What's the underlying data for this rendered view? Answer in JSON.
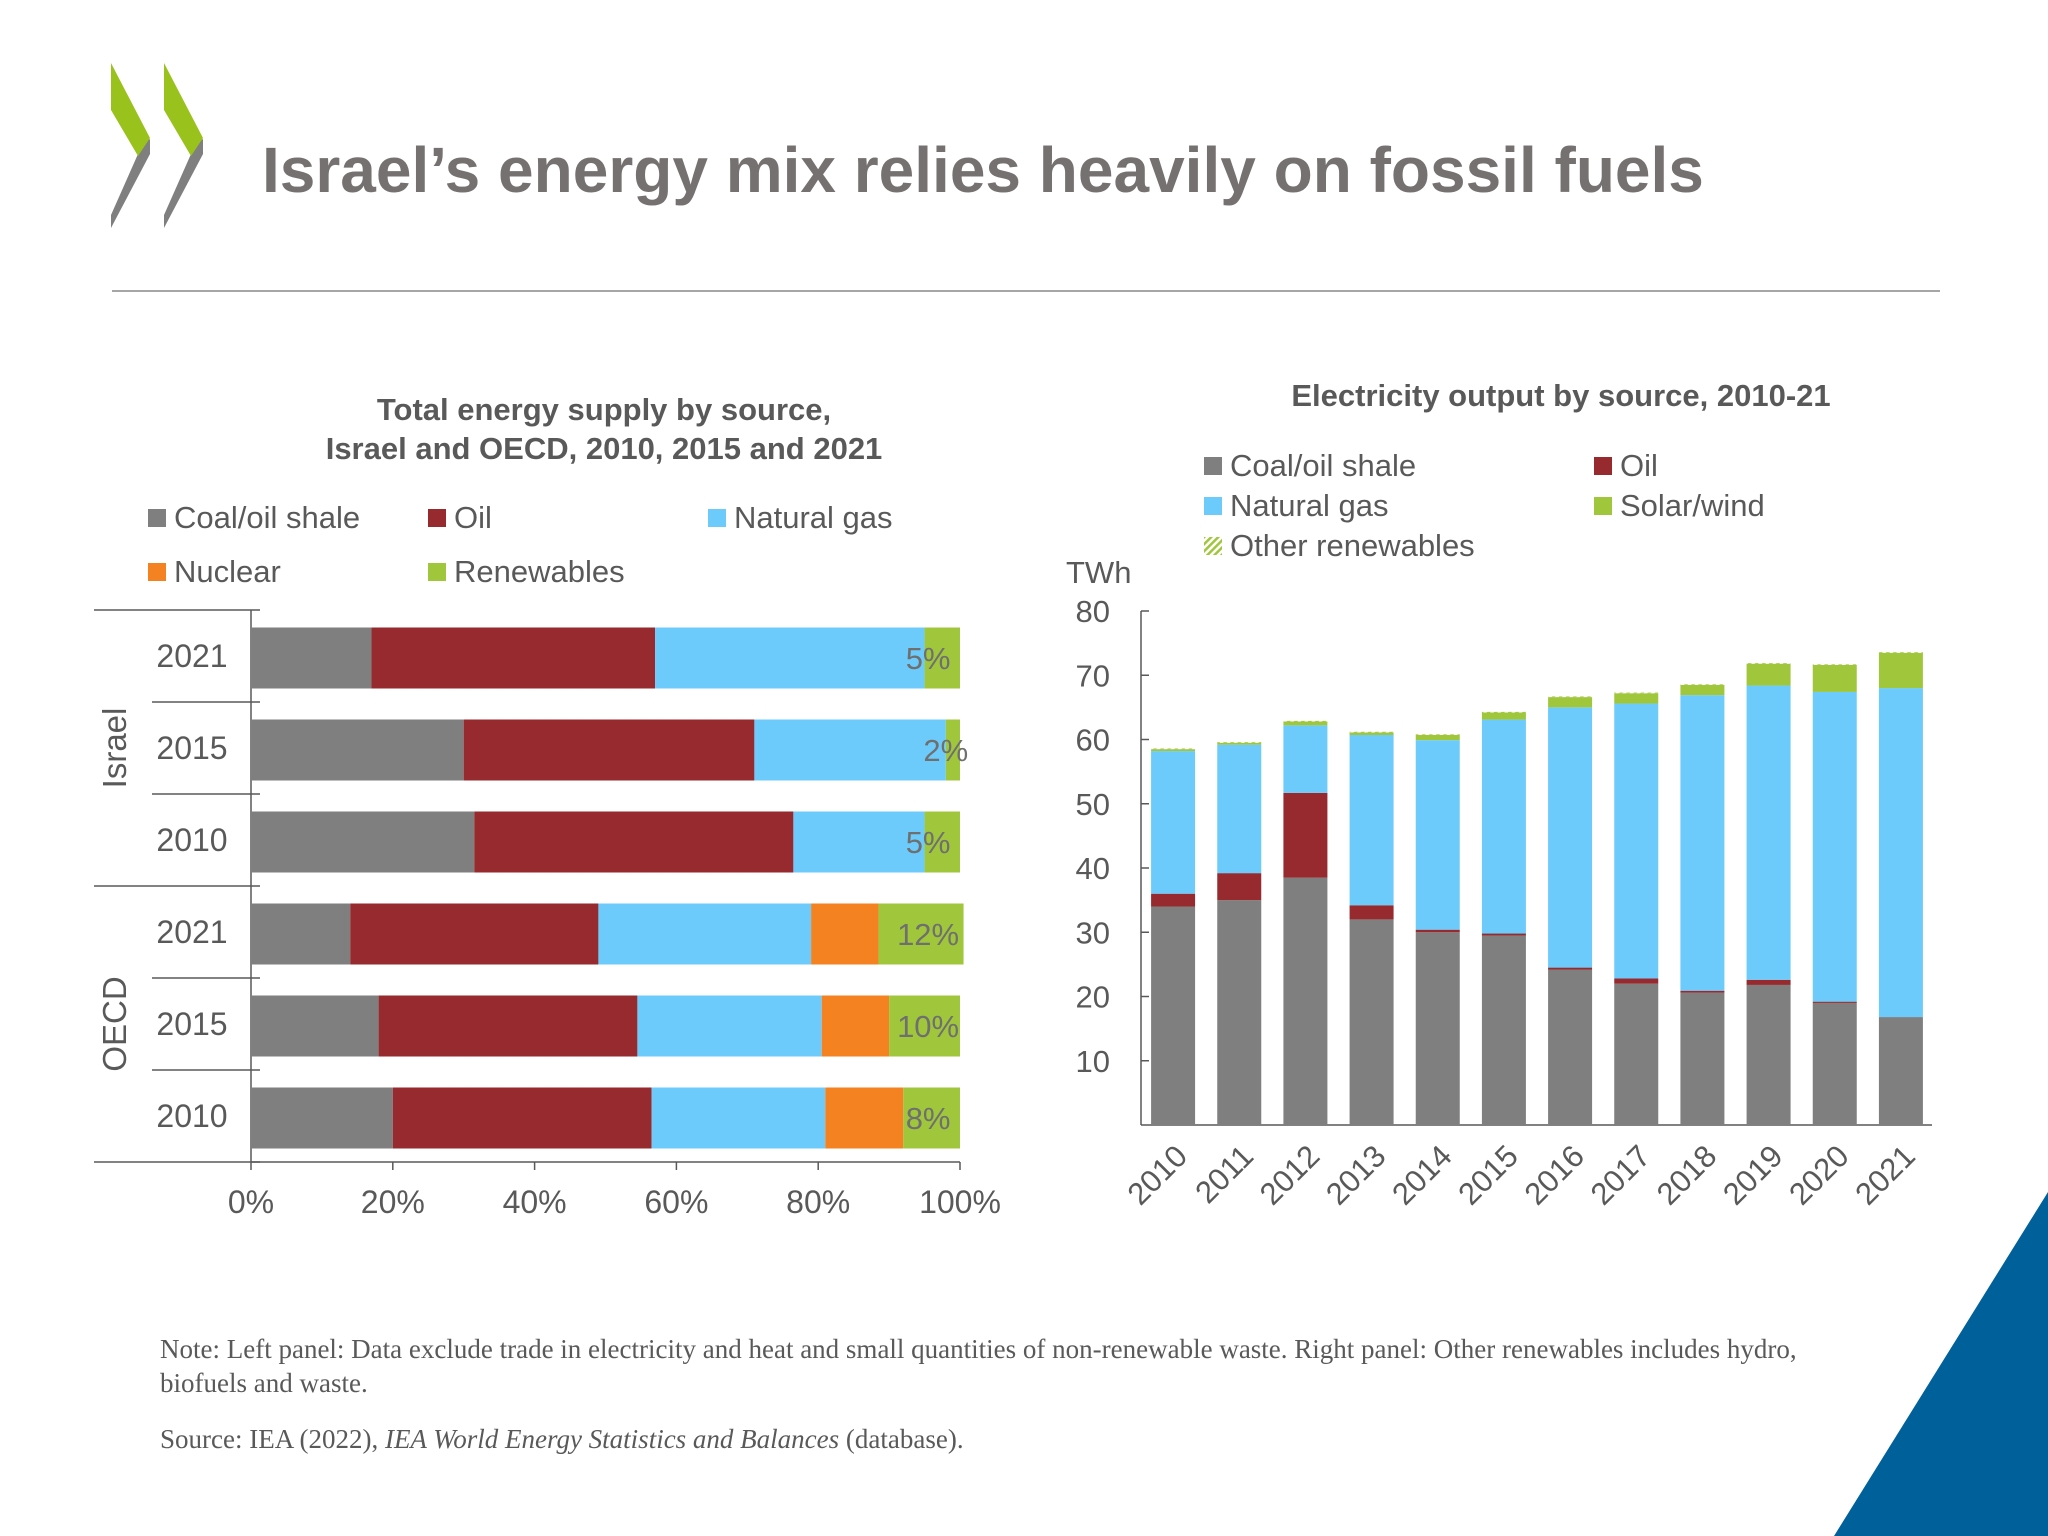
{
  "page": {
    "title": "Israel’s energy mix relies heavily on fossil fuels",
    "note": "Note: Left panel: Data exclude trade in electricity and heat and small quantities of non-renewable waste. Right panel: Other renewables includes hydro, biofuels and waste.",
    "source_prefix": "Source: IEA (2022), ",
    "source_title": "IEA World Energy Statistics and Balances",
    "source_suffix": " (database).",
    "colors": {
      "title": "#767171",
      "logo_green": "#99c21c",
      "logo_grey": "#7f7f7f",
      "corner_blue": "#00609a"
    },
    "icons": [
      "oecd-chevron-logo"
    ]
  },
  "chart_data": [
    {
      "type": "bar",
      "orientation": "horizontal",
      "stacked": "percent",
      "title_lines": [
        "Total energy supply by source,",
        "Israel and OECD, 2010, 2015 and 2021"
      ],
      "groups": [
        "Israel",
        "OECD"
      ],
      "categories": [
        {
          "group": "Israel",
          "label": "2021"
        },
        {
          "group": "Israel",
          "label": "2015"
        },
        {
          "group": "Israel",
          "label": "2010"
        },
        {
          "group": "OECD",
          "label": "2021"
        },
        {
          "group": "OECD",
          "label": "2015"
        },
        {
          "group": "OECD",
          "label": "2010"
        }
      ],
      "series": [
        {
          "name": "Coal/oil shale",
          "color": "#7f7f7f",
          "values": [
            17,
            30,
            31.5,
            14,
            18,
            20
          ]
        },
        {
          "name": "Oil",
          "color": "#962a2e",
          "values": [
            40,
            41,
            45,
            35,
            36.5,
            36.5
          ]
        },
        {
          "name": "Natural gas",
          "color": "#6ccbfb",
          "values": [
            38,
            27,
            18.5,
            30,
            26,
            24.5
          ]
        },
        {
          "name": "Nuclear",
          "color": "#f58220",
          "values": [
            0,
            0,
            0,
            9.5,
            9.5,
            11
          ]
        },
        {
          "name": "Renewables",
          "color": "#a0c73c",
          "values": [
            5,
            2,
            5,
            12,
            10,
            8
          ]
        }
      ],
      "data_labels": [
        "5%",
        "2%",
        "5%",
        "12%",
        "10%",
        "8%"
      ],
      "legend_order": [
        "Coal/oil shale",
        "Oil",
        "Natural gas",
        "Nuclear",
        "Renewables"
      ],
      "legend_position": "top",
      "xlim": [
        0,
        100
      ],
      "xticks": [
        "0%",
        "20%",
        "40%",
        "60%",
        "80%",
        "100%"
      ],
      "grid": false
    },
    {
      "type": "bar",
      "stacked": true,
      "title": "Electricity output by source, 2010-21",
      "ylabel": "TWh",
      "ylim": [
        0,
        80
      ],
      "yticks": [
        10,
        20,
        30,
        40,
        50,
        60,
        70,
        80
      ],
      "categories": [
        "2010",
        "2011",
        "2012",
        "2013",
        "2014",
        "2015",
        "2016",
        "2017",
        "2018",
        "2019",
        "2020",
        "2021"
      ],
      "series": [
        {
          "name": "Coal/oil shale",
          "color": "#7f7f7f",
          "values": [
            34,
            35,
            38.5,
            32,
            30,
            29.5,
            24.2,
            22,
            20.6,
            21.8,
            19,
            16.8
          ]
        },
        {
          "name": "Oil",
          "color": "#962a2e",
          "values": [
            2,
            4.2,
            13.2,
            2.2,
            0.4,
            0.3,
            0.3,
            0.8,
            0.3,
            0.8,
            0.2,
            0
          ]
        },
        {
          "name": "Natural gas",
          "color": "#6ccbfb",
          "values": [
            22.2,
            20,
            10.5,
            26.5,
            29.5,
            33.3,
            40.5,
            42.8,
            46,
            45.8,
            48.2,
            51.2
          ]
        },
        {
          "name": "Solar/wind",
          "color": "#a0c73c",
          "values": [
            0.3,
            0.3,
            0.6,
            0.4,
            0.8,
            1.1,
            1.6,
            1.6,
            1.6,
            3.4,
            4.2,
            5.5
          ]
        },
        {
          "name": "Other renewables",
          "color": "#a0c73c",
          "pattern": "hatched",
          "values": [
            0.1,
            0.1,
            0.1,
            0.1,
            0.1,
            0.1,
            0.1,
            0.1,
            0.1,
            0.1,
            0.1,
            0.1
          ]
        }
      ],
      "legend_order": [
        "Coal/oil shale",
        "Oil",
        "Natural gas",
        "Solar/wind",
        "Other renewables"
      ],
      "legend_position": "top",
      "grid": false
    }
  ]
}
